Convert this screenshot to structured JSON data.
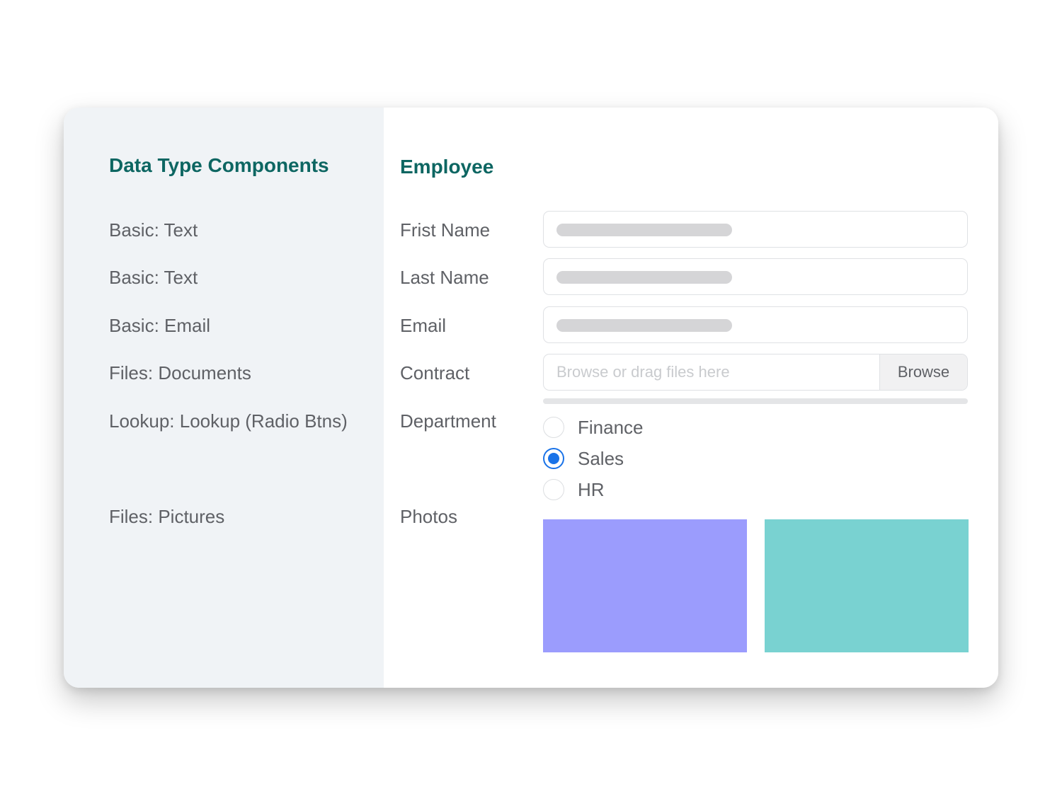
{
  "left_panel": {
    "title": "Data Type Components",
    "items": [
      {
        "label": "Basic: Text"
      },
      {
        "label": "Basic: Text"
      },
      {
        "label": "Basic: Email"
      },
      {
        "label": "Files: Documents"
      },
      {
        "label": "Lookup: Lookup (Radio Btns)"
      },
      {
        "label": "Files: Pictures"
      }
    ]
  },
  "form": {
    "title": "Employee",
    "first_name": {
      "label": "Frist Name"
    },
    "last_name": {
      "label": "Last Name"
    },
    "email": {
      "label": "Email"
    },
    "contract": {
      "label": "Contract",
      "placeholder": "Browse or drag files here",
      "button_label": "Browse"
    },
    "department": {
      "label": "Department",
      "options": [
        {
          "label": "Finance",
          "checked": false
        },
        {
          "label": "Sales",
          "checked": true
        },
        {
          "label": "HR",
          "checked": false
        }
      ]
    },
    "photos": {
      "label": "Photos",
      "colors": [
        "#9b9cfd",
        "#79d2d1"
      ]
    }
  },
  "colors": {
    "heading": "#0d6662",
    "accent": "#1a73e8",
    "left_panel_bg": "#f0f3f6"
  }
}
